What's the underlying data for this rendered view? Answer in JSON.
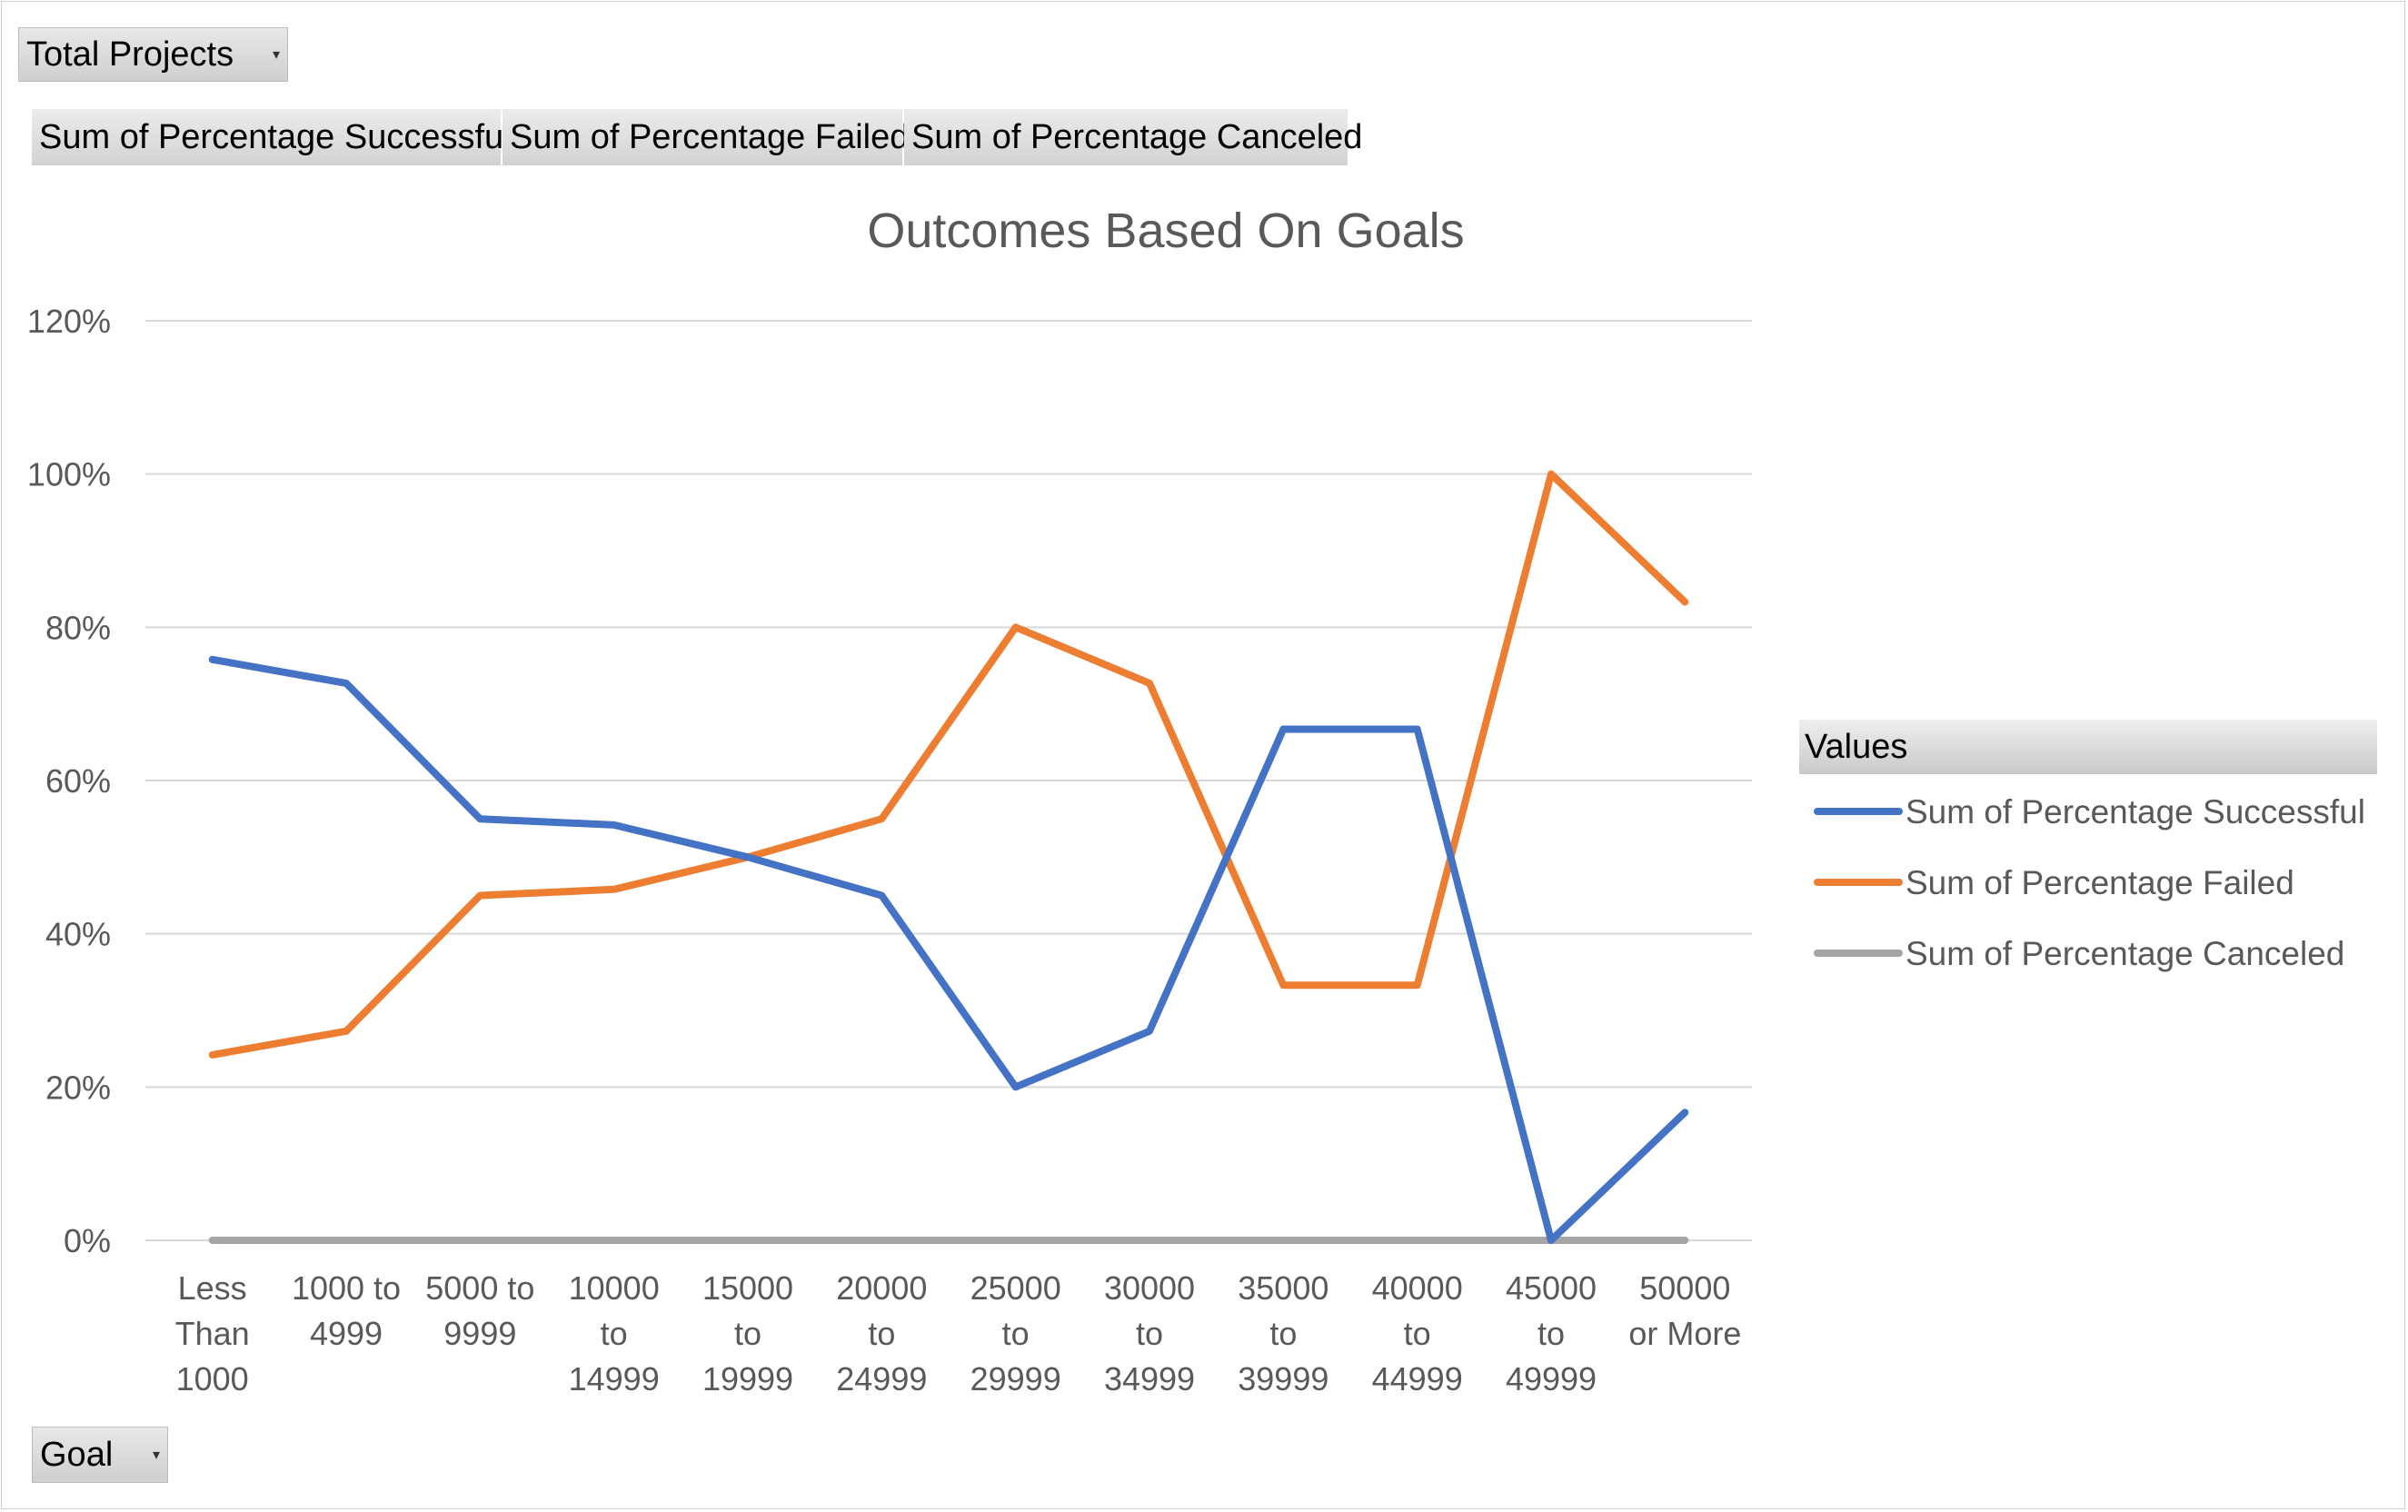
{
  "filters": {
    "report_filter": "Total Projects",
    "axis_field": "Goal"
  },
  "value_fields": [
    "Sum of Percentage  Successful",
    "Sum of Percentage  Failed",
    "Sum of Percentage  Canceled"
  ],
  "legend": {
    "header": "Values"
  },
  "colors": {
    "successful": "#4472C4",
    "failed": "#ED7D31",
    "canceled": "#A5A5A5",
    "gridline": "#D9D9D9"
  },
  "chart_data": {
    "type": "line",
    "title": "Outcomes Based On Goals",
    "xlabel": "",
    "ylabel": "",
    "categories": [
      [
        "Less",
        "Than",
        "1000"
      ],
      [
        "1000 to",
        "4999"
      ],
      [
        "5000 to",
        "9999"
      ],
      [
        "10000",
        "to",
        "14999"
      ],
      [
        "15000",
        "to",
        "19999"
      ],
      [
        "20000",
        "to",
        "24999"
      ],
      [
        "25000",
        "to",
        "29999"
      ],
      [
        "30000",
        "to",
        "34999"
      ],
      [
        "35000",
        "to",
        "39999"
      ],
      [
        "40000",
        "to",
        "44999"
      ],
      [
        "45000",
        "to",
        "49999"
      ],
      [
        "50000",
        "or More"
      ]
    ],
    "y_ticks": [
      "0%",
      "20%",
      "40%",
      "60%",
      "80%",
      "100%",
      "120%"
    ],
    "ylim": [
      0,
      1.2
    ],
    "grid": true,
    "legend_position": "right",
    "series": [
      {
        "name": "Sum of Percentage Successful",
        "color": "#4472C4",
        "values": [
          0.758,
          0.727,
          0.55,
          0.542,
          0.5,
          0.45,
          0.2,
          0.273,
          0.667,
          0.667,
          0.0,
          0.167
        ]
      },
      {
        "name": "Sum of Percentage Failed",
        "color": "#ED7D31",
        "values": [
          0.242,
          0.273,
          0.45,
          0.458,
          0.5,
          0.55,
          0.8,
          0.727,
          0.333,
          0.333,
          1.0,
          0.833
        ]
      },
      {
        "name": "Sum of Percentage Canceled",
        "color": "#A5A5A5",
        "values": [
          0,
          0,
          0,
          0,
          0,
          0,
          0,
          0,
          0,
          0,
          0,
          0
        ]
      }
    ]
  }
}
